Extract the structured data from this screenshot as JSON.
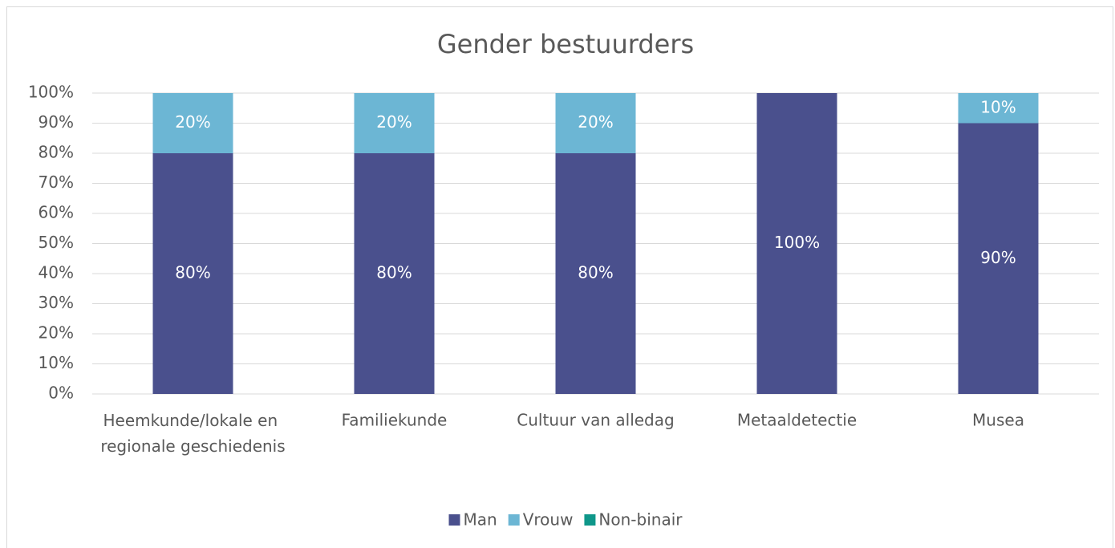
{
  "chart_data": {
    "type": "stacked_bar",
    "title": "Gender bestuurders",
    "categories": [
      "Heemkunde/lokale en regionale geschiedenis",
      "Familiekunde",
      "Cultuur van alledag",
      "Metaaldetectie",
      "Musea"
    ],
    "series": [
      {
        "name": "Man",
        "color": "#4a508d",
        "values": [
          80,
          80,
          80,
          100,
          90
        ],
        "value_labels": [
          "80%",
          "80%",
          "80%",
          "100%",
          "90%"
        ]
      },
      {
        "name": "Vrouw",
        "color": "#6cb6d4",
        "values": [
          20,
          20,
          20,
          0,
          10
        ],
        "value_labels": [
          "20%",
          "20%",
          "20%",
          null,
          "10%"
        ]
      },
      {
        "name": "Non-binair",
        "color": "#0f978a",
        "values": [
          0,
          0,
          0,
          0,
          0
        ]
      }
    ],
    "ylim": [
      0,
      100
    ],
    "yticks": [
      {
        "value": 0,
        "label": "0%"
      },
      {
        "value": 10,
        "label": "10%"
      },
      {
        "value": 20,
        "label": "20%"
      },
      {
        "value": 30,
        "label": "30%"
      },
      {
        "value": 40,
        "label": "40%"
      },
      {
        "value": 50,
        "label": "50%"
      },
      {
        "value": 60,
        "label": "60%"
      },
      {
        "value": 70,
        "label": "70%"
      },
      {
        "value": 80,
        "label": "80%"
      },
      {
        "value": 90,
        "label": "90%"
      },
      {
        "value": 100,
        "label": "100%"
      }
    ],
    "grid": true,
    "legend": "bottom"
  }
}
